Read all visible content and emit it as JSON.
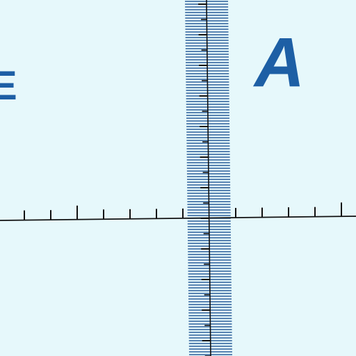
{
  "letters": {
    "right": "A",
    "left_partial": "E"
  },
  "colors": {
    "background": "#e6f8fb",
    "letter": "#1d5fa5",
    "scale_lines": "#2a5e9a",
    "axis": "#111111"
  }
}
